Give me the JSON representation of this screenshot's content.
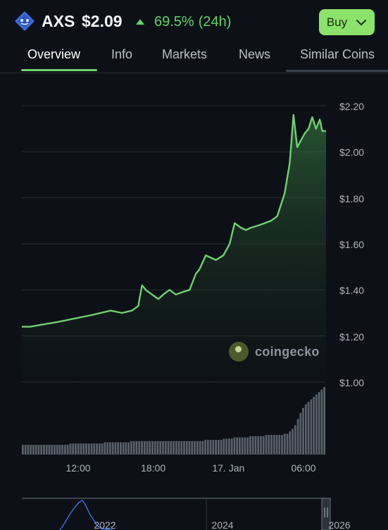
{
  "coin": {
    "symbol": "AXS",
    "price": "$2.09",
    "change_pct": "69.5%",
    "change_period": "(24h)",
    "logo_icon": "axie-infinity-logo-icon",
    "change_color": "#5dd468"
  },
  "actions": {
    "buy_label": "Buy"
  },
  "tabs": [
    {
      "label": "Overview",
      "active": true
    },
    {
      "label": "Info"
    },
    {
      "label": "Markets"
    },
    {
      "label": "News"
    },
    {
      "label": "Similar Coins"
    }
  ],
  "watermark": {
    "text": "coingecko"
  },
  "colors": {
    "accent": "#6fd16f",
    "line": "#6fd16f",
    "background": "#0d1117"
  },
  "chart_data": {
    "type": "area",
    "ylim": [
      1.0,
      2.2
    ],
    "y_ticks": [
      "$2.20",
      "$2.00",
      "$1.80",
      "$1.60",
      "$1.40",
      "$1.20",
      "$1.00"
    ],
    "y_tick_values": [
      2.2,
      2.0,
      1.8,
      1.6,
      1.4,
      1.2,
      1.0
    ],
    "x_ticks": [
      "12:00",
      "18:00",
      "17. Jan",
      "06:00"
    ],
    "x_tick_hours": [
      12,
      18,
      24,
      30
    ],
    "xlim_hours": [
      7.5,
      31.8
    ],
    "price_series": {
      "x_hours": [
        7.5,
        8.2,
        9.2,
        10.3,
        11.2,
        12.1,
        13.0,
        13.8,
        14.6,
        15.5,
        16.3,
        16.8,
        17.1,
        17.4,
        17.9,
        18.4,
        18.8,
        19.3,
        19.8,
        20.3,
        20.9,
        21.4,
        21.7,
        22.2,
        22.6,
        23.0,
        23.6,
        24.1,
        24.5,
        25.0,
        25.4,
        25.8,
        26.4,
        26.9,
        27.4,
        27.9,
        28.5,
        28.9,
        29.2,
        29.5,
        29.8,
        30.1,
        30.4,
        30.7,
        31.0,
        31.3,
        31.5,
        31.8
      ],
      "y": [
        1.24,
        1.24,
        1.25,
        1.26,
        1.27,
        1.28,
        1.29,
        1.3,
        1.31,
        1.3,
        1.31,
        1.33,
        1.42,
        1.4,
        1.38,
        1.36,
        1.38,
        1.4,
        1.38,
        1.39,
        1.4,
        1.47,
        1.49,
        1.55,
        1.54,
        1.53,
        1.55,
        1.6,
        1.69,
        1.67,
        1.66,
        1.67,
        1.68,
        1.69,
        1.7,
        1.72,
        1.82,
        1.95,
        2.16,
        2.02,
        2.05,
        2.08,
        2.1,
        2.15,
        2.1,
        2.14,
        2.09,
        2.09
      ]
    },
    "volume_series": {
      "y": [
        8,
        8,
        8,
        8,
        8,
        8,
        8,
        8,
        8,
        8,
        8,
        8,
        8,
        8,
        8,
        8,
        8,
        8,
        9,
        9,
        9,
        9,
        9,
        9,
        9,
        9,
        9,
        9,
        9,
        9,
        9,
        10,
        10,
        10,
        10,
        10,
        10,
        10,
        10,
        10,
        10,
        11,
        11,
        11,
        11,
        11,
        11,
        11,
        11,
        11,
        11,
        11,
        11,
        11,
        11,
        11,
        11,
        11,
        11,
        11,
        11,
        11,
        11,
        11,
        11,
        11,
        11,
        11,
        11,
        12,
        12,
        12,
        12,
        12,
        12,
        12,
        13,
        13,
        13,
        13,
        14,
        14,
        14,
        14,
        14,
        14,
        15,
        15,
        15,
        15,
        15,
        15,
        16,
        16,
        16,
        16,
        16,
        16,
        16,
        17,
        17,
        19,
        21,
        24,
        29,
        34,
        38,
        41,
        43,
        45,
        47,
        49,
        51,
        53,
        55
      ]
    },
    "navigator": {
      "x_ticks": [
        "2022",
        "2024",
        "2026"
      ]
    }
  }
}
